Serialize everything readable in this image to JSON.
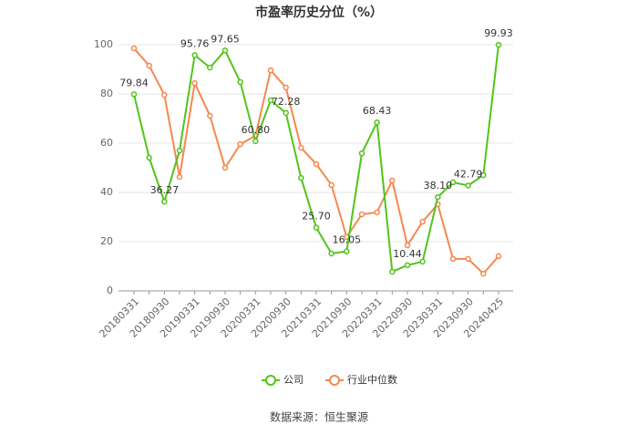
{
  "chart_data": {
    "type": "line",
    "title": "市盈率历史分位（%）",
    "categories": [
      "20180331",
      null,
      "20180930",
      null,
      "20190331",
      null,
      "20190930",
      null,
      "20200331",
      null,
      "20200930",
      null,
      "20210331",
      null,
      "20210930",
      null,
      "20220331",
      null,
      "20220930",
      null,
      "20230331",
      null,
      "20230930",
      null,
      "20240425"
    ],
    "series": [
      {
        "name": "公司",
        "color": "#52c41a",
        "values": [
          79.84,
          54.1,
          36.27,
          57.0,
          95.76,
          90.7,
          97.65,
          84.8,
          60.8,
          77.4,
          72.28,
          45.9,
          25.7,
          15.2,
          16.05,
          55.9,
          68.43,
          7.8,
          10.44,
          11.9,
          38.1,
          44.1,
          42.79,
          47.0,
          99.93
        ],
        "value_labels": [
          "79.84",
          null,
          "36.27",
          null,
          "95.76",
          null,
          "97.65",
          null,
          "60.80",
          null,
          "72.28",
          null,
          "25.70",
          null,
          "16.05",
          null,
          "68.43",
          null,
          "10.44",
          null,
          "38.10",
          null,
          "42.79",
          null,
          "99.93"
        ]
      },
      {
        "name": "行业中位数",
        "color": "#f5884e",
        "values": [
          98.5,
          91.5,
          79.6,
          46.3,
          84.4,
          71.1,
          50.0,
          59.6,
          63.0,
          89.6,
          82.6,
          58.1,
          51.5,
          43.0,
          21.9,
          31.1,
          31.9,
          44.8,
          18.5,
          28.1,
          35.2,
          13.0,
          13.0,
          7.0,
          14.1
        ]
      }
    ],
    "ylim": [
      0,
      100
    ],
    "yticks": [
      0,
      20,
      40,
      60,
      80,
      100
    ],
    "grid": true,
    "source": "数据来源：恒生聚源"
  }
}
